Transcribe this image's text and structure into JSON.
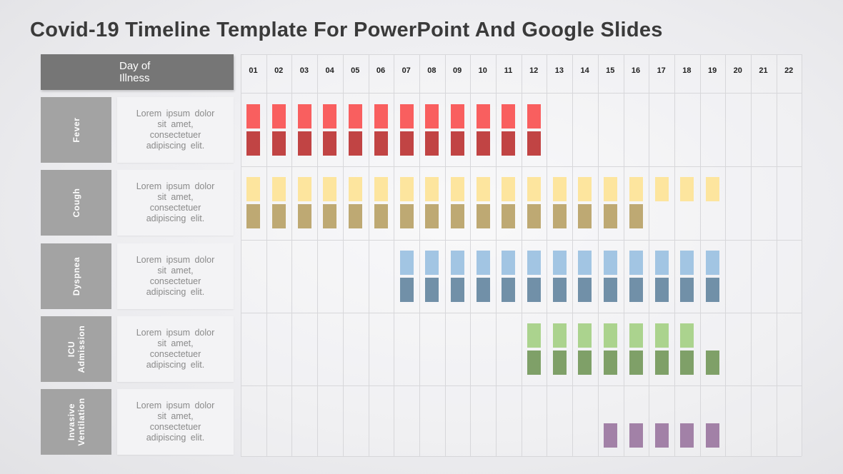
{
  "title": "Covid-19 Timeline Template For PowerPoint And Google Slides",
  "header": {
    "day_label_line1": "Day of",
    "day_label_line2": "Illness"
  },
  "days": [
    "01",
    "02",
    "03",
    "04",
    "05",
    "06",
    "07",
    "08",
    "09",
    "10",
    "11",
    "12",
    "13",
    "14",
    "15",
    "16",
    "17",
    "18",
    "19",
    "20",
    "21",
    "22"
  ],
  "rows": [
    {
      "label_lines": [
        "Fever"
      ],
      "desc_lines": [
        "Lorem ipsum dolor",
        "sit amet,",
        "consectetuer",
        "adipiscing elit."
      ],
      "top": {
        "start_day": 1,
        "end_day": 12,
        "color": "#f95f5f"
      },
      "bottom": {
        "start_day": 1,
        "end_day": 12,
        "color": "#c14444"
      }
    },
    {
      "label_lines": [
        "Cough"
      ],
      "desc_lines": [
        "Lorem ipsum dolor",
        "sit amet,",
        "consectetuer",
        "adipiscing elit."
      ],
      "top": {
        "start_day": 1,
        "end_day": 19,
        "color": "#fde59e"
      },
      "bottom": {
        "start_day": 1,
        "end_day": 16,
        "color": "#bea973"
      }
    },
    {
      "label_lines": [
        "Dyspnea"
      ],
      "desc_lines": [
        "Lorem ipsum dolor",
        "sit amet,",
        "consectetuer",
        "adipiscing elit."
      ],
      "top": {
        "start_day": 7,
        "end_day": 19,
        "color": "#a2c5e3"
      },
      "bottom": {
        "start_day": 7,
        "end_day": 19,
        "color": "#7190a8"
      }
    },
    {
      "label_lines": [
        "ICU",
        "Admission"
      ],
      "desc_lines": [
        "Lorem ipsum dolor",
        "sit amet,",
        "consectetuer",
        "adipiscing elit."
      ],
      "top": {
        "start_day": 12,
        "end_day": 18,
        "color": "#abd38e"
      },
      "bottom": {
        "start_day": 12,
        "end_day": 19,
        "color": "#7fa068"
      }
    },
    {
      "label_lines": [
        "Invasive",
        "Ventilation"
      ],
      "desc_lines": [
        "Lorem ipsum dolor",
        "sit amet,",
        "consectetuer",
        "adipiscing elit."
      ],
      "top": null,
      "bottom": {
        "start_day": 15,
        "end_day": 19,
        "color": "#a281a7"
      }
    }
  ]
}
